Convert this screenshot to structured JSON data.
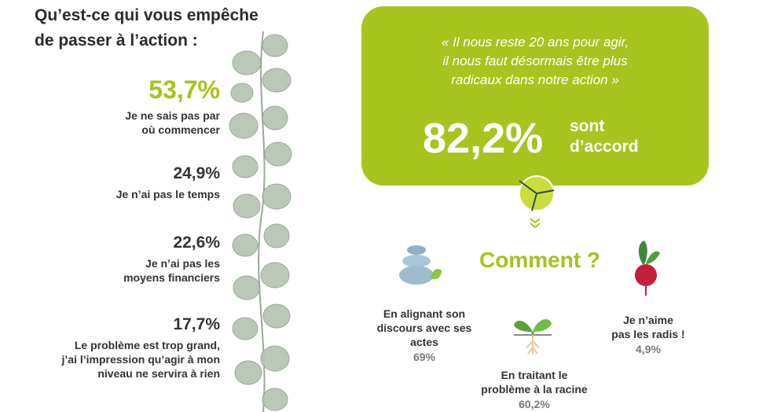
{
  "title": {
    "line1": "Qu’est-ce qui vous empêche",
    "line2": "de passer à l’action :"
  },
  "reasons": [
    {
      "percent": "53,7%",
      "line1": "Je ne sais pas par",
      "line2": "où commencer"
    },
    {
      "percent": "24,9%",
      "line1": "Je n’ai pas le temps"
    },
    {
      "percent": "22,6%",
      "line1": "Je n’ai pas les",
      "line2": "moyens financiers"
    },
    {
      "percent": "17,7%",
      "line1": "Le problème est trop grand,",
      "line2": "j’ai l’impression qu’agir à mon",
      "line3": "niveau ne servira à rien"
    }
  ],
  "quote": {
    "line1": "« Il nous reste 20 ans pour agir,",
    "line2": "il nous faut désormais être plus",
    "line3": "radicaux dans notre action »"
  },
  "agree": {
    "percent": "82,2%",
    "line1": "sont",
    "line2": "d’accord"
  },
  "how": {
    "title": "Comment ?",
    "answers": [
      {
        "line1": "En alignant son",
        "line2": "discours avec ses",
        "line3": "actes",
        "percent": "69%",
        "icon": "stacked-stones-icon"
      },
      {
        "line1": "En traitant le",
        "line2": "problème à la racine",
        "percent": "60,2%",
        "icon": "sprout-icon"
      },
      {
        "line1": "Je n’aime",
        "line2": "pas les radis !",
        "percent": "4,9%",
        "icon": "radish-icon"
      }
    ]
  },
  "colors": {
    "accent": "#a8c41e",
    "text": "#333333",
    "muted": "#777777"
  }
}
